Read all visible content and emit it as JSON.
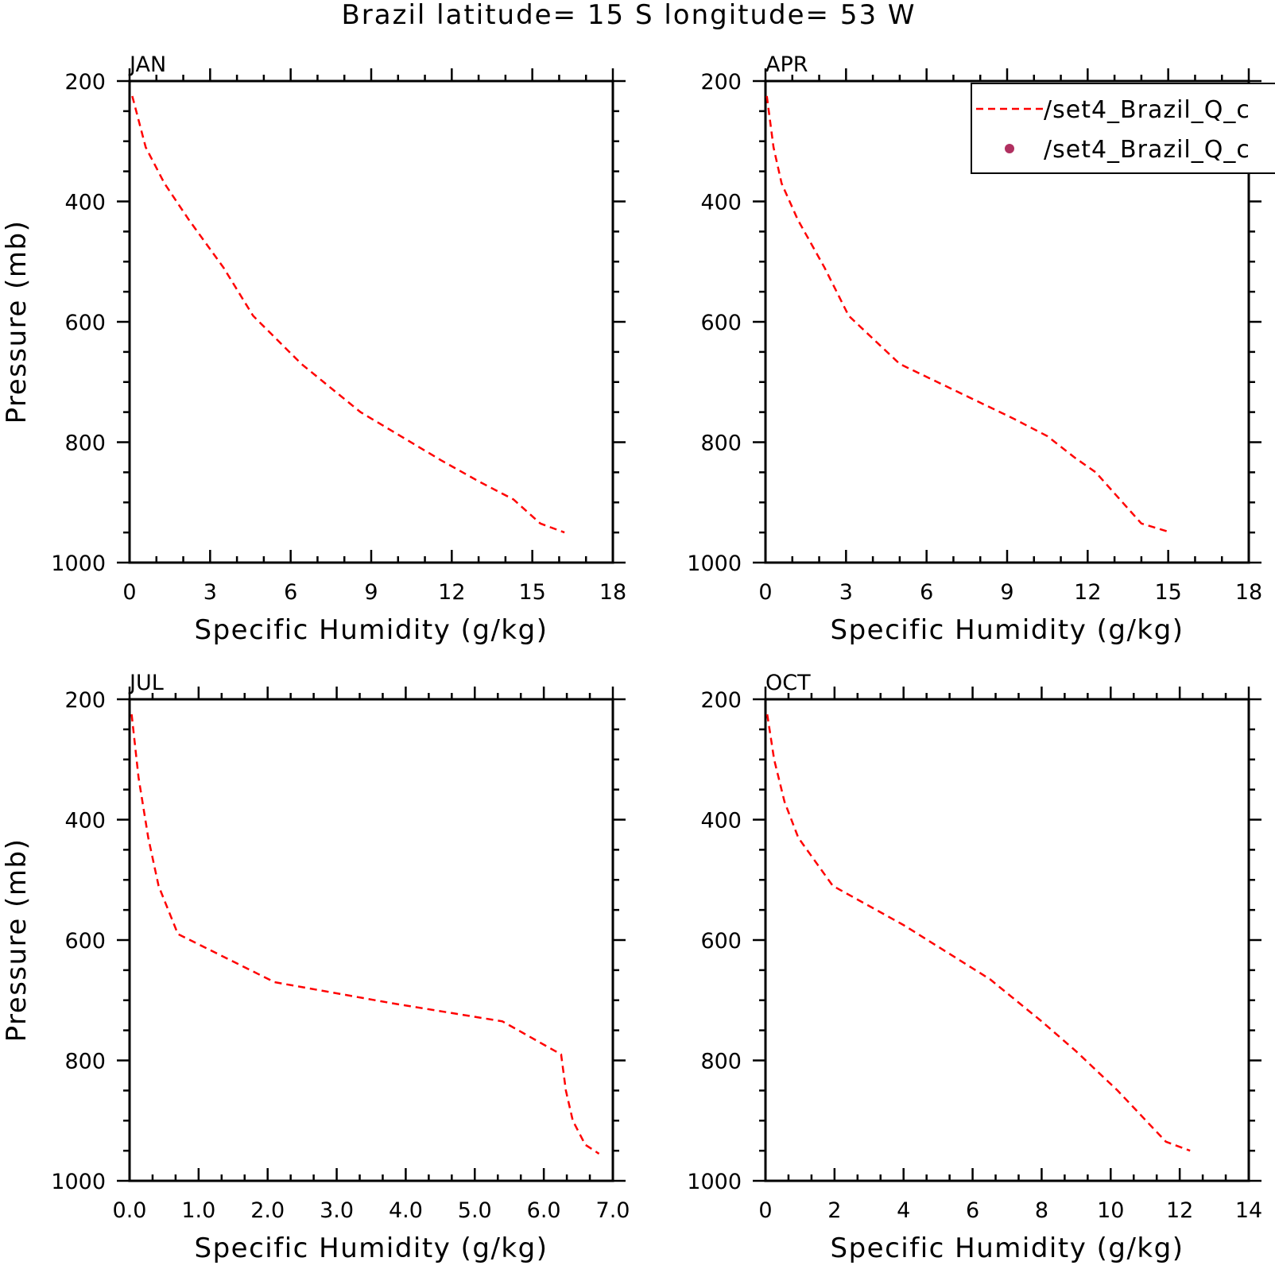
{
  "title": "Brazil  latitude= 15 S longitude= 53 W",
  "legend": {
    "entries": [
      {
        "label": "/set4_Brazil_Q_c",
        "style": "dashed-line",
        "color": "#ff0000"
      },
      {
        "label": "/set4_Brazil_Q_c",
        "style": "marker",
        "color": "#b03060"
      }
    ]
  },
  "chart_data": [
    {
      "type": "line",
      "panel": "JAN",
      "xlabel": "Specific Humidity (g/kg)",
      "ylabel": "Pressure (mb)",
      "xlim": [
        0,
        18
      ],
      "ylim": [
        1000,
        200
      ],
      "y_reversed": true,
      "xticks": [
        "0",
        "3",
        "6",
        "9",
        "12",
        "15",
        "18"
      ],
      "yticks": [
        "200",
        "400",
        "600",
        "800",
        "1000"
      ],
      "series": [
        {
          "values": [
            [
              0.1,
              225
            ],
            [
              0.6,
              310
            ],
            [
              1.3,
              370
            ],
            [
              2.2,
              430
            ],
            [
              3.5,
              510
            ],
            [
              4.6,
              590
            ],
            [
              6.4,
              670
            ],
            [
              8.6,
              750
            ],
            [
              10.1,
              790
            ],
            [
              11.6,
              830
            ],
            [
              13.0,
              865
            ],
            [
              14.3,
              895
            ],
            [
              15.3,
              935
            ],
            [
              16.2,
              950
            ]
          ]
        }
      ]
    },
    {
      "type": "line",
      "panel": "APR",
      "xlabel": "Specific Humidity (g/kg)",
      "ylabel": "",
      "xlim": [
        0,
        18
      ],
      "ylim": [
        1000,
        200
      ],
      "y_reversed": true,
      "xticks": [
        "0",
        "3",
        "6",
        "9",
        "12",
        "15",
        "18"
      ],
      "yticks": [
        "200",
        "400",
        "600",
        "800",
        "1000"
      ],
      "series": [
        {
          "values": [
            [
              0.05,
              225
            ],
            [
              0.3,
              310
            ],
            [
              0.6,
              370
            ],
            [
              1.2,
              430
            ],
            [
              2.2,
              510
            ],
            [
              3.1,
              590
            ],
            [
              5.0,
              670
            ],
            [
              7.8,
              730
            ],
            [
              9.2,
              760
            ],
            [
              10.5,
              790
            ],
            [
              11.5,
              825
            ],
            [
              12.3,
              850
            ],
            [
              13.0,
              885
            ],
            [
              14.0,
              935
            ],
            [
              15.1,
              950
            ]
          ]
        }
      ]
    },
    {
      "type": "line",
      "panel": "JUL",
      "xlabel": "Specific Humidity (g/kg)",
      "ylabel": "Pressure (mb)",
      "xlim": [
        0,
        7
      ],
      "ylim": [
        1000,
        200
      ],
      "y_reversed": true,
      "xticks": [
        "0.0",
        "1.0",
        "2.0",
        "3.0",
        "4.0",
        "5.0",
        "6.0",
        "7.0"
      ],
      "yticks": [
        "200",
        "400",
        "600",
        "800",
        "1000"
      ],
      "series": [
        {
          "values": [
            [
              0.03,
              225
            ],
            [
              0.13,
              330
            ],
            [
              0.27,
              430
            ],
            [
              0.42,
              510
            ],
            [
              0.7,
              590
            ],
            [
              2.1,
              670
            ],
            [
              3.8,
              705
            ],
            [
              5.4,
              735
            ],
            [
              6.25,
              790
            ],
            [
              6.32,
              850
            ],
            [
              6.42,
              900
            ],
            [
              6.6,
              940
            ],
            [
              6.8,
              955
            ]
          ]
        }
      ]
    },
    {
      "type": "line",
      "panel": "OCT",
      "xlabel": "Specific Humidity (g/kg)",
      "ylabel": "",
      "xlim": [
        0,
        14
      ],
      "ylim": [
        1000,
        200
      ],
      "y_reversed": true,
      "xticks": [
        "0",
        "2",
        "4",
        "6",
        "8",
        "10",
        "12",
        "14"
      ],
      "yticks": [
        "200",
        "400",
        "600",
        "800",
        "1000"
      ],
      "series": [
        {
          "values": [
            [
              0.05,
              225
            ],
            [
              0.25,
              300
            ],
            [
              0.55,
              370
            ],
            [
              0.95,
              430
            ],
            [
              1.95,
              510
            ],
            [
              4.0,
              575
            ],
            [
              6.5,
              665
            ],
            [
              8.0,
              735
            ],
            [
              9.0,
              785
            ],
            [
              10.2,
              850
            ],
            [
              11.6,
              935
            ],
            [
              12.3,
              950
            ]
          ]
        }
      ]
    }
  ]
}
